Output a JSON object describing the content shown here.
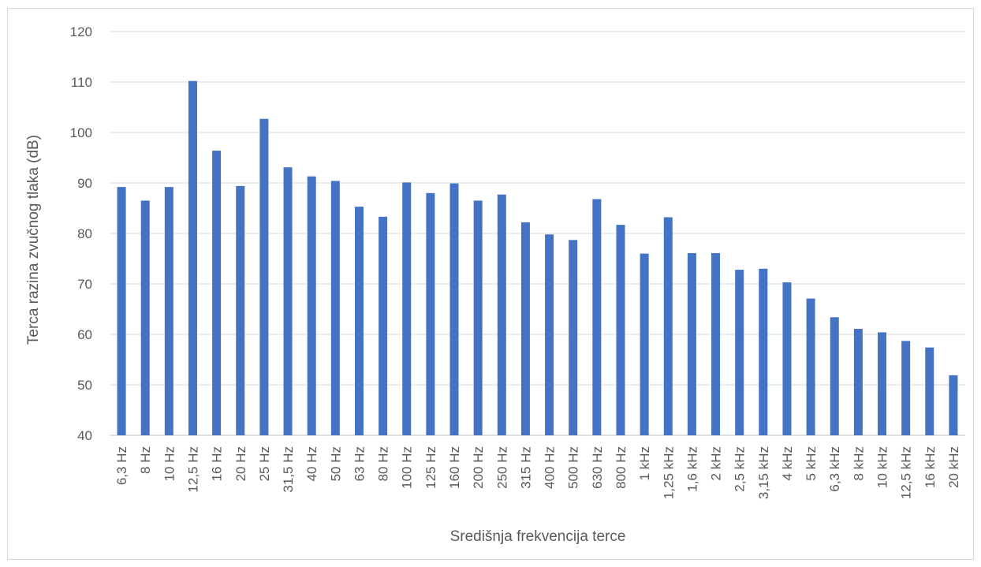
{
  "chart_data": {
    "type": "bar",
    "title": "",
    "xlabel": "Središnja frekvencija terce",
    "ylabel": "Terca razina zvučnog tlaka (dB)",
    "ylim": [
      40,
      120
    ],
    "yticks": [
      40,
      50,
      60,
      70,
      80,
      90,
      100,
      110,
      120
    ],
    "grid": "horizontal",
    "bar_color": "#4472C4",
    "categories": [
      "6,3 Hz",
      "8 Hz",
      "10 Hz",
      "12,5 Hz",
      "16 Hz",
      "20 Hz",
      "25 Hz",
      "31,5 Hz",
      "40 Hz",
      "50 Hz",
      "63 Hz",
      "80 Hz",
      "100 Hz",
      "125 Hz",
      "160 Hz",
      "200 Hz",
      "250 Hz",
      "315 Hz",
      "400 Hz",
      "500 Hz",
      "630 Hz",
      "800 Hz",
      "1 kHz",
      "1,25 kHz",
      "1,6 kHz",
      "2 kHz",
      "2,5 kHz",
      "3,15 kHz",
      "4 kHz",
      "5 kHz",
      "6,3 kHz",
      "8 kHz",
      "10 kHz",
      "12,5 kHz",
      "16 kHz",
      "20 kHz"
    ],
    "values": [
      89.2,
      86.5,
      89.2,
      110.2,
      96.4,
      89.4,
      102.7,
      93.1,
      91.3,
      90.4,
      85.3,
      83.3,
      90.1,
      88.0,
      89.9,
      86.5,
      87.7,
      82.2,
      79.8,
      78.7,
      86.8,
      81.7,
      76.0,
      83.2,
      76.1,
      76.1,
      72.8,
      73.0,
      70.3,
      67.1,
      63.4,
      61.1,
      60.4,
      58.7,
      57.4,
      51.9
    ]
  }
}
